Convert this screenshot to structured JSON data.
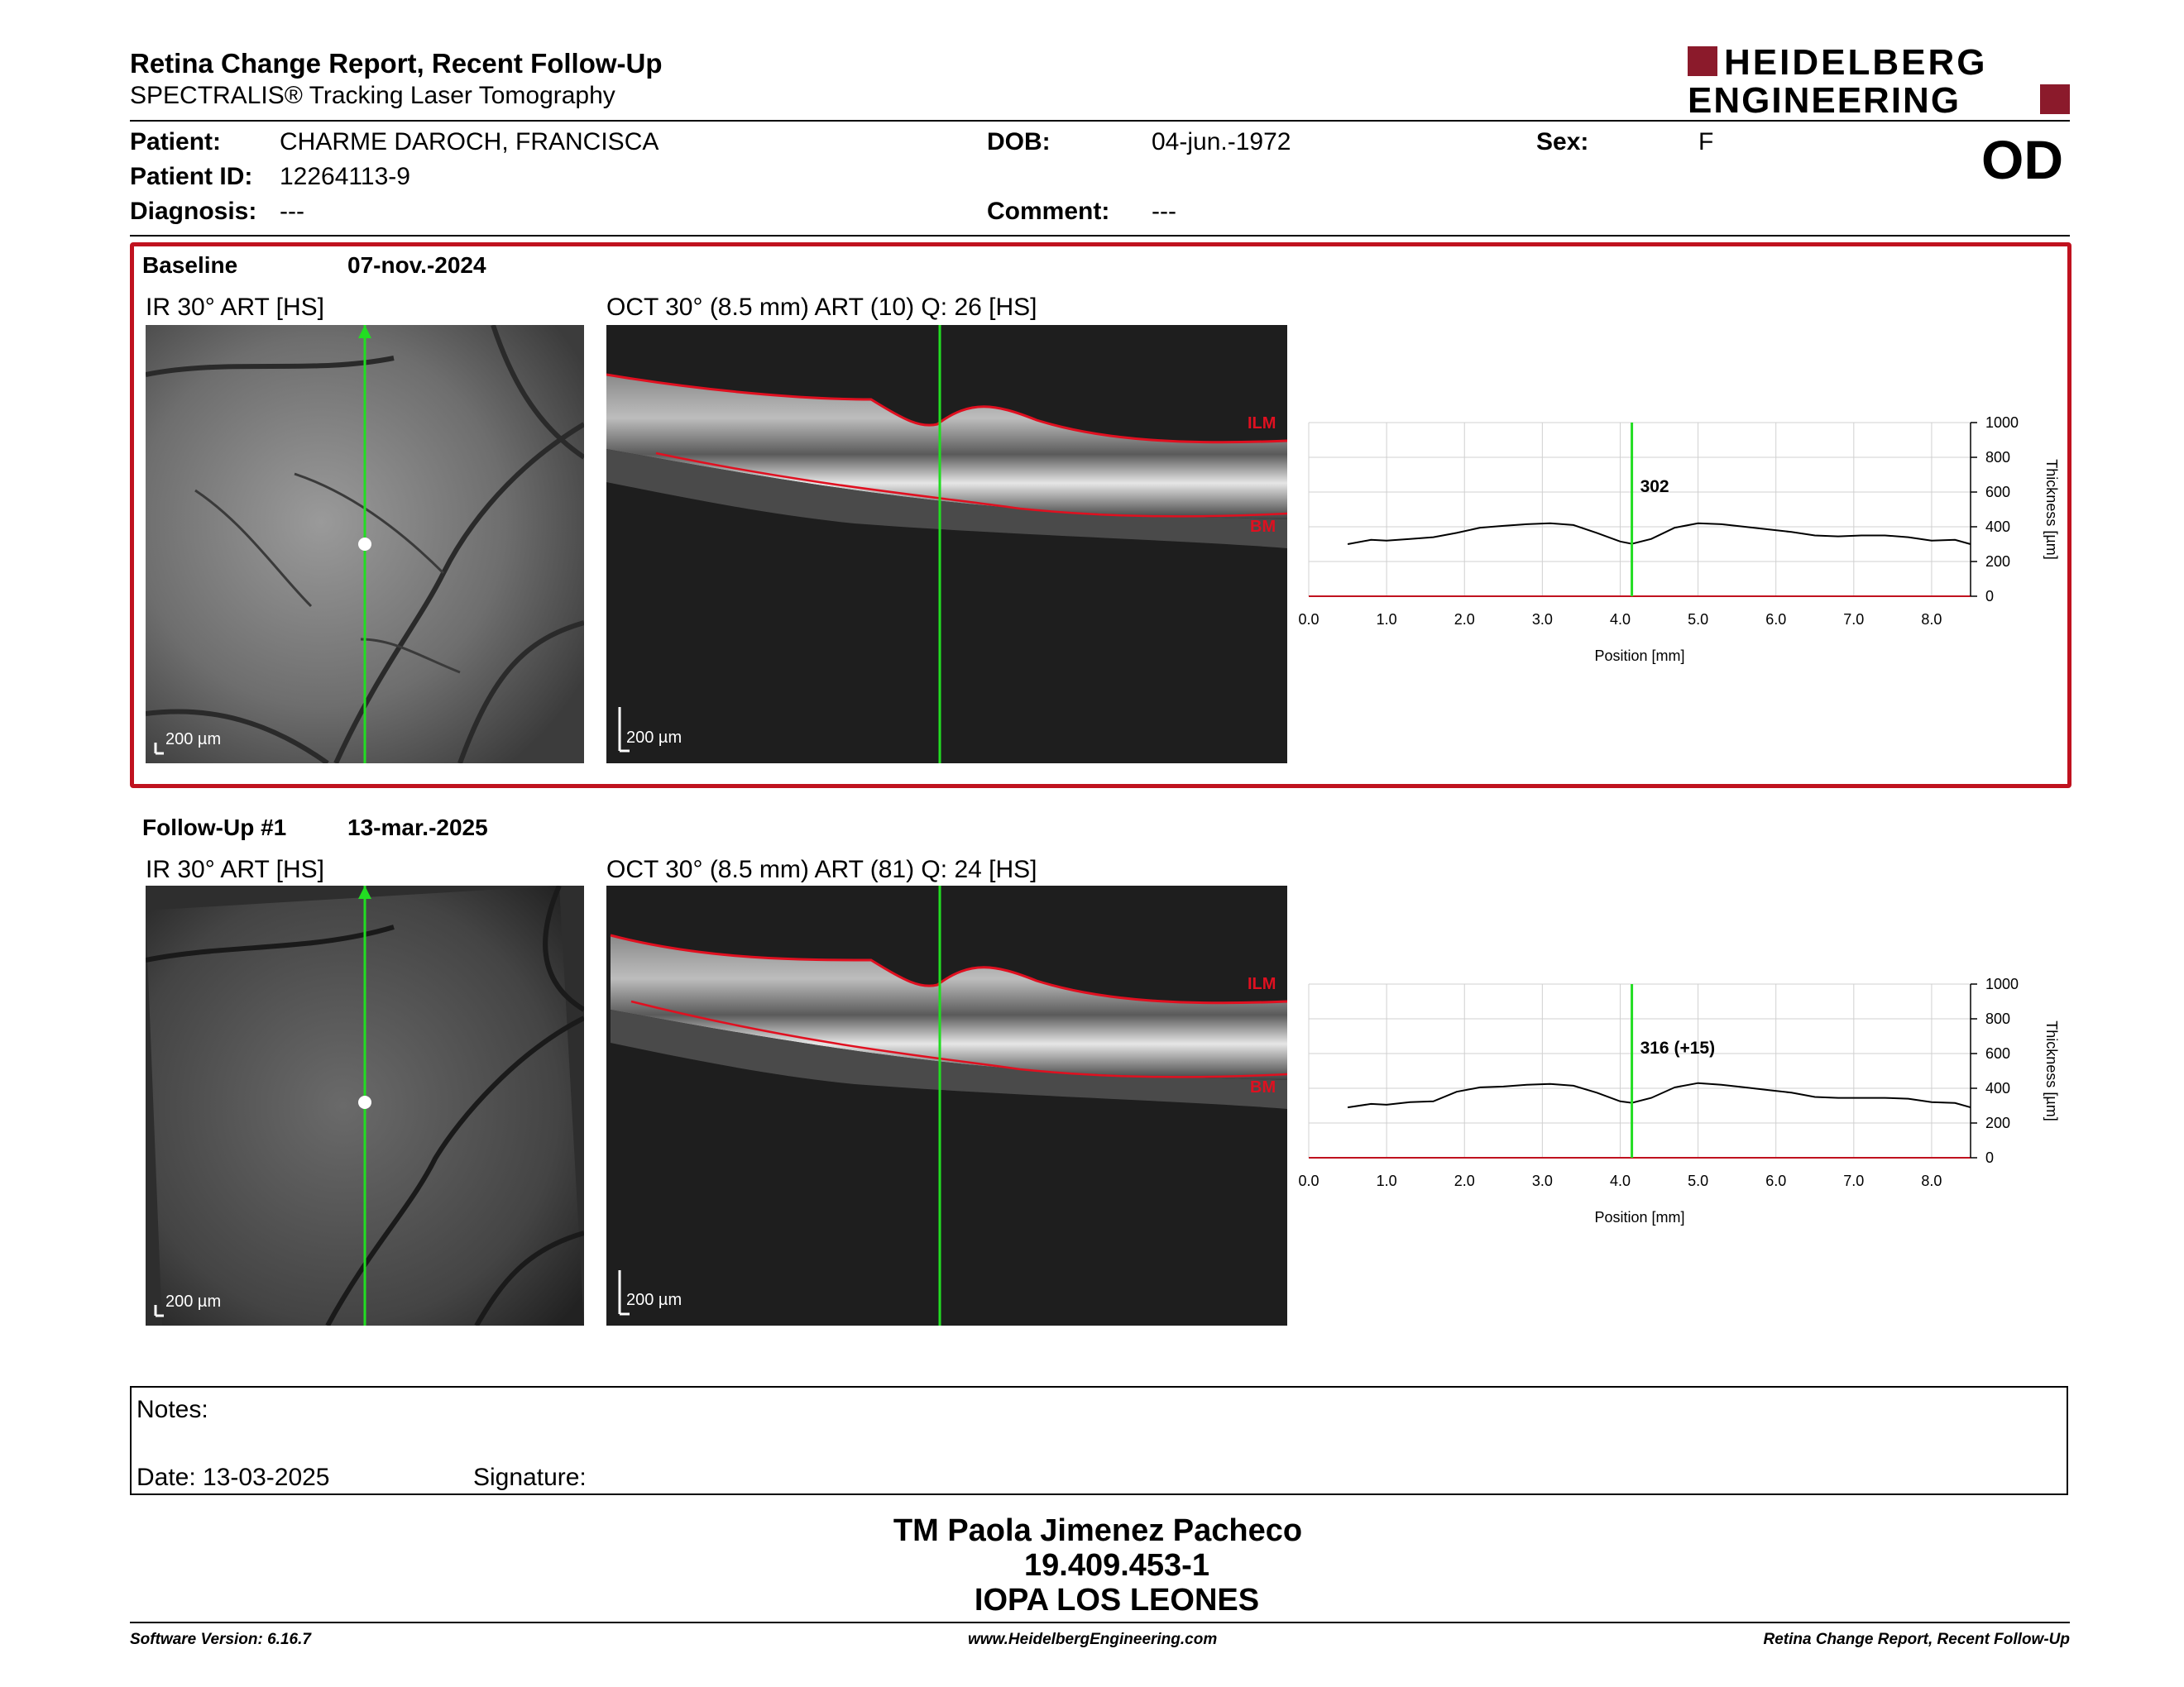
{
  "header": {
    "title": "Retina Change Report, Recent Follow-Up",
    "subtitle": "SPECTRALIS® Tracking Laser Tomography",
    "logo_line1": "HEIDELBERG",
    "logo_line2": "ENGINEERING",
    "eye": "OD"
  },
  "patient": {
    "patient_label": "Patient:",
    "patient_value": "CHARME DAROCH, FRANCISCA",
    "id_label": "Patient ID:",
    "id_value": "12264113-9",
    "diagnosis_label": "Diagnosis:",
    "diagnosis_value": "---",
    "dob_label": "DOB:",
    "dob_value": "04-jun.-1972",
    "comment_label": "Comment:",
    "comment_value": "---",
    "sex_label": "Sex:",
    "sex_value": "F"
  },
  "baseline": {
    "label": "Baseline",
    "date": "07-nov.-2024",
    "ir_caption": "IR 30° ART [HS]",
    "oct_caption": "OCT 30° (8.5 mm) ART (10) Q: 26 [HS]",
    "ir_scale": "200 µm",
    "oct_scale": "200 µm",
    "ilm": "ILM",
    "bm": "BM",
    "marker_value": "302"
  },
  "followup": {
    "label": "Follow-Up #1",
    "date": "13-mar.-2025",
    "ir_caption": "IR 30° ART [HS]",
    "oct_caption": "OCT 30° (8.5 mm) ART (81) Q: 24 [HS]",
    "ir_scale": "200 µm",
    "oct_scale": "200 µm",
    "ilm": "ILM",
    "bm": "BM",
    "marker_value": "316 (+15)"
  },
  "chart_data": [
    {
      "type": "line",
      "xlabel": "Position [mm]",
      "ylabel": "Thickness [µm]",
      "xlim": [
        0,
        8.5
      ],
      "ylim": [
        0,
        1000
      ],
      "x_ticks": [
        "0.0",
        "1.0",
        "2.0",
        "3.0",
        "4.0",
        "5.0",
        "6.0",
        "7.0",
        "8.0"
      ],
      "y_ticks": [
        "0",
        "200",
        "400",
        "600",
        "800",
        "1000"
      ],
      "marker_x": 4.15,
      "grid": true,
      "series": [
        {
          "x": [
            0.5,
            0.8,
            1.0,
            1.3,
            1.6,
            1.9,
            2.2,
            2.5,
            2.8,
            3.1,
            3.4,
            3.7,
            4.0,
            4.15,
            4.4,
            4.7,
            5.0,
            5.3,
            5.6,
            5.9,
            6.2,
            6.5,
            6.8,
            7.1,
            7.4,
            7.7,
            8.0,
            8.3,
            8.5
          ],
          "values": [
            300,
            325,
            320,
            330,
            340,
            365,
            395,
            405,
            415,
            420,
            410,
            365,
            315,
            302,
            330,
            395,
            420,
            415,
            400,
            385,
            370,
            350,
            345,
            350,
            350,
            340,
            320,
            325,
            300
          ]
        }
      ]
    },
    {
      "type": "line",
      "xlabel": "Position [mm]",
      "ylabel": "Thickness [µm]",
      "xlim": [
        0,
        8.5
      ],
      "ylim": [
        0,
        1000
      ],
      "x_ticks": [
        "0.0",
        "1.0",
        "2.0",
        "3.0",
        "4.0",
        "5.0",
        "6.0",
        "7.0",
        "8.0"
      ],
      "y_ticks": [
        "0",
        "200",
        "400",
        "600",
        "800",
        "1000"
      ],
      "marker_x": 4.15,
      "grid": true,
      "series": [
        {
          "x": [
            0.5,
            0.8,
            1.0,
            1.3,
            1.6,
            1.9,
            2.2,
            2.5,
            2.8,
            3.1,
            3.4,
            3.7,
            4.0,
            4.15,
            4.4,
            4.7,
            5.0,
            5.3,
            5.6,
            5.9,
            6.2,
            6.5,
            6.8,
            7.1,
            7.4,
            7.7,
            8.0,
            8.3,
            8.5
          ],
          "values": [
            290,
            310,
            305,
            320,
            325,
            380,
            405,
            410,
            420,
            425,
            415,
            375,
            325,
            316,
            345,
            405,
            430,
            420,
            405,
            390,
            375,
            350,
            345,
            345,
            345,
            340,
            320,
            315,
            290
          ]
        }
      ]
    }
  ],
  "notes": {
    "notes_label": "Notes:",
    "date_label": "Date: 13-03-2025",
    "signature_label": "Signature:"
  },
  "signatory": {
    "name": "TM Paola Jimenez Pacheco",
    "id": "19.409.453-1",
    "place": "IOPA LOS LEONES"
  },
  "footer": {
    "software": "Software Version: 6.16.7",
    "website": "www.HeidelbergEngineering.com",
    "report": "Retina Change Report, Recent Follow-Up"
  }
}
